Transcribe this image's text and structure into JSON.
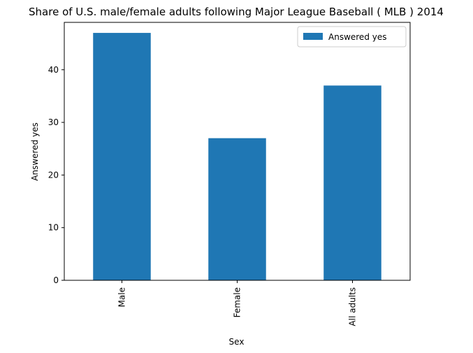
{
  "chart_data": {
    "type": "bar",
    "title": "Share of U.S. male/female adults following Major League Baseball ( MLB ) 2014",
    "xlabel": "Sex",
    "ylabel": "Answered yes",
    "categories": [
      "Male",
      "Female",
      "All adults"
    ],
    "series": [
      {
        "name": "Answered yes",
        "values": [
          47,
          27,
          37
        ],
        "color": "#1f77b4"
      }
    ],
    "ylim": [
      0,
      49
    ],
    "yticks": [
      0,
      10,
      20,
      30,
      40
    ],
    "legend_position": "top-right",
    "grid": false
  }
}
